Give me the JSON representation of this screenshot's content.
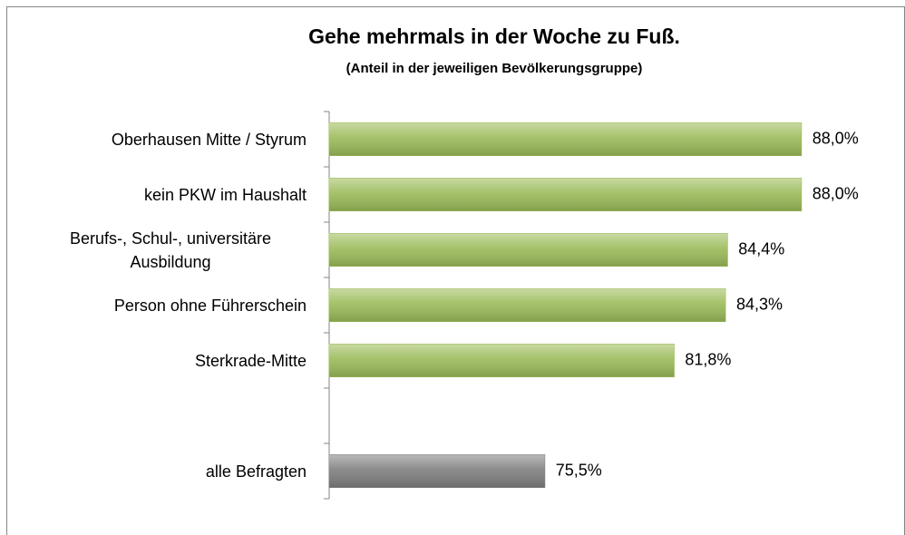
{
  "chart_data": {
    "type": "bar",
    "orientation": "horizontal",
    "title": "Gehe mehrmals in der Woche zu Fuß.",
    "subtitle": "(Anteil in der jeweiligen Bevölkerungsgruppe)",
    "categories": [
      "Oberhausen Mitte / Styrum",
      "kein PKW im Haushalt",
      "Berufs-, Schul-, universitäre Ausbildung",
      "Person ohne Führerschein ",
      "Sterkrade-Mitte",
      null,
      "alle Befragten"
    ],
    "values": [
      88.0,
      88.0,
      84.4,
      84.3,
      81.8,
      null,
      75.5
    ],
    "value_labels": [
      "88,0%",
      "88,0%",
      "84,4%",
      "84,3%",
      "81,8%",
      null,
      "75,5%"
    ],
    "colors": [
      "#9bbb59",
      "#9bbb59",
      "#9bbb59",
      "#9bbb59",
      "#9bbb59",
      null,
      "#7f7f7f"
    ],
    "xlim": [
      65,
      90
    ]
  }
}
